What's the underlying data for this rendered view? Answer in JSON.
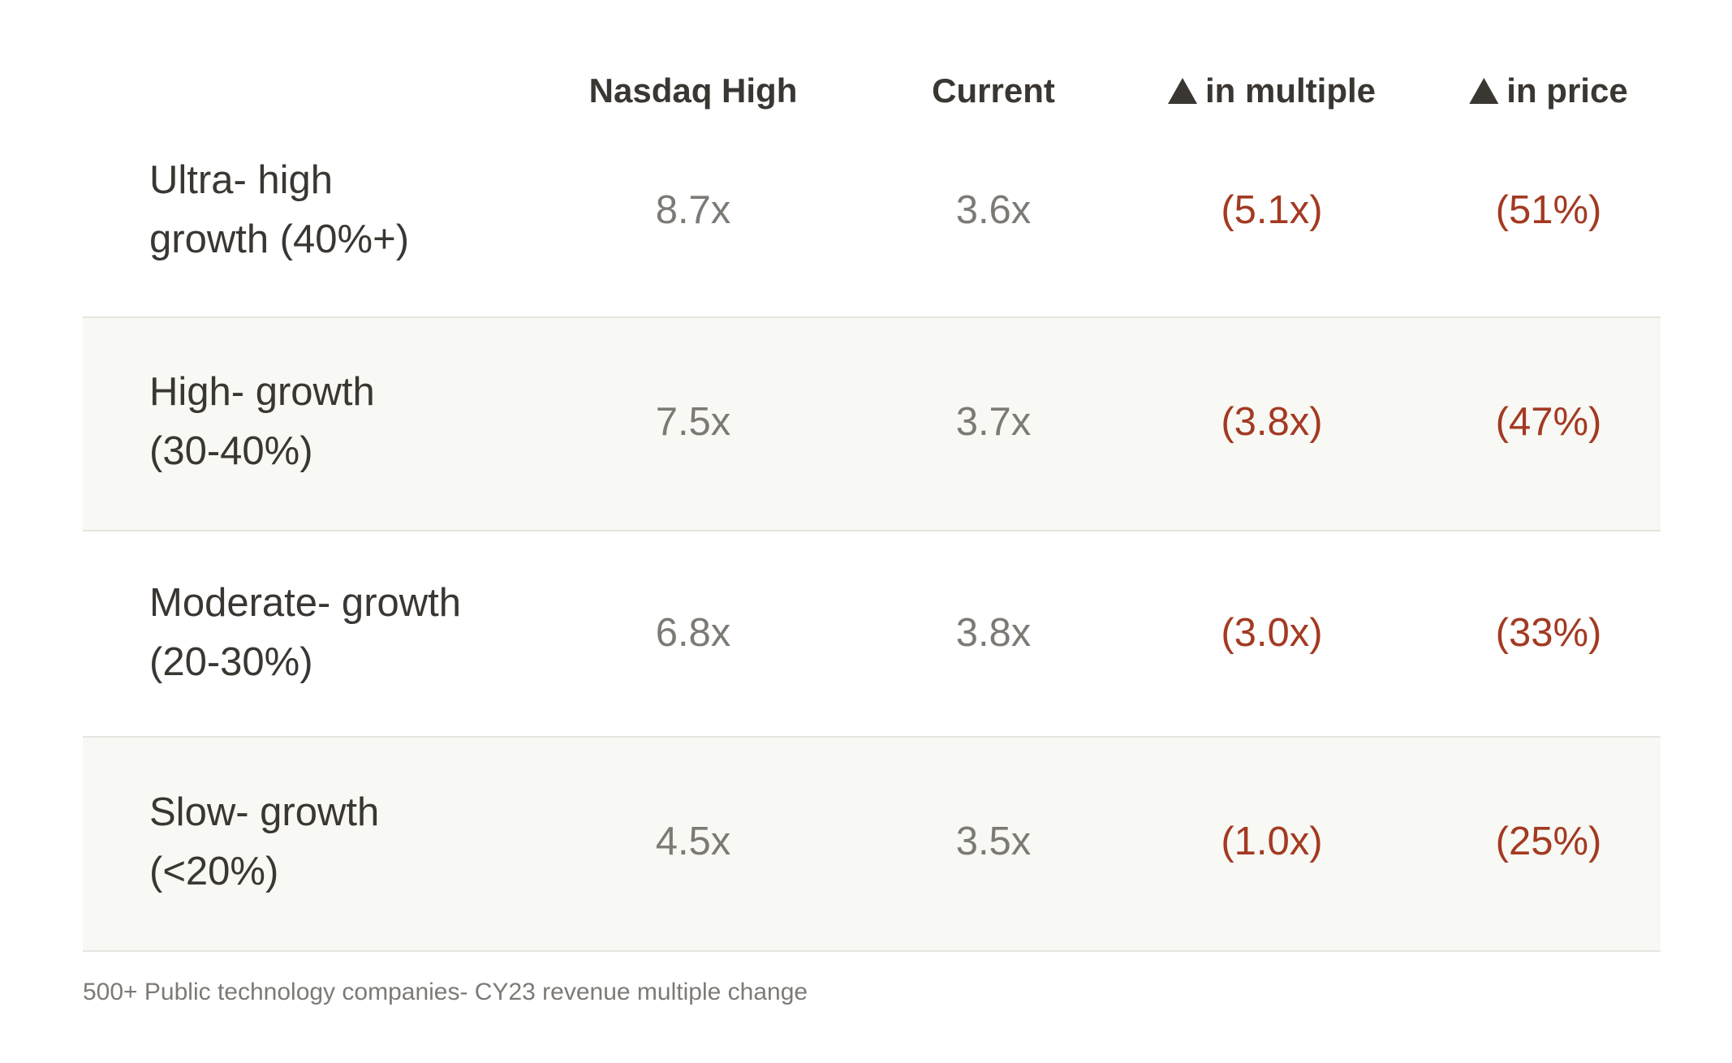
{
  "chart_data": {
    "type": "table",
    "columns": [
      "",
      "Nasdaq High",
      "Current",
      "in multiple",
      "in price"
    ],
    "column_prefix_icon": {
      "in multiple": "triangle-up-icon",
      "in price": "triangle-up-icon"
    },
    "rows": [
      {
        "label_line1": "Ultra- high",
        "label_line2": "growth (40%+)",
        "nasdaq_high": "8.7x",
        "current": "3.6x",
        "delta_multiple": "(5.1x)",
        "delta_price": "(51%)"
      },
      {
        "label_line1": "High- growth",
        "label_line2": "(30-40%)",
        "nasdaq_high": "7.5x",
        "current": "3.7x",
        "delta_multiple": "(3.8x)",
        "delta_price": "(47%)"
      },
      {
        "label_line1": "Moderate- growth",
        "label_line2": "(20-30%)",
        "nasdaq_high": "6.8x",
        "current": "3.8x",
        "delta_multiple": "(3.0x)",
        "delta_price": "(33%)"
      },
      {
        "label_line1": "Slow- growth",
        "label_line2": "(<20%)",
        "nasdaq_high": "4.5x",
        "current": "3.5x",
        "delta_multiple": "(1.0x)",
        "delta_price": "(25%)"
      }
    ],
    "colors": {
      "negative": "#a33a22",
      "value": "#7d7a76",
      "text": "#3a3632",
      "shaded_row": "#f8f8f4"
    }
  },
  "footnote": "500+ Public technology companies- CY23 revenue multiple change"
}
